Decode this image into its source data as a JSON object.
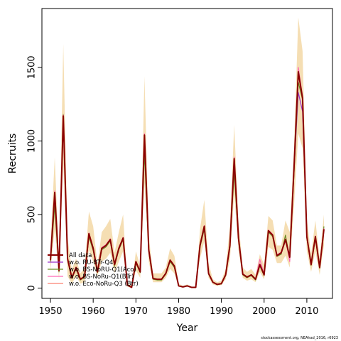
{
  "chart_data": {
    "type": "line",
    "xlabel": "Year",
    "ylabel": "Recruits",
    "xlim": [
      1948,
      2016
    ],
    "ylim": [
      -70,
      1900
    ],
    "x_ticks": [
      1950,
      1960,
      1970,
      1980,
      1990,
      2000,
      2010
    ],
    "y_ticks": [
      0,
      500,
      1000,
      1500
    ],
    "grid": false,
    "legend_position": "bottom-left",
    "footnote": "stockassessment.org, NEAhad_2016, r6923",
    "band": {
      "color": "#f5deb3",
      "x": [
        1950,
        1951,
        1952,
        1953,
        1954,
        1955,
        1956,
        1957,
        1958,
        1959,
        1960,
        1961,
        1962,
        1963,
        1964,
        1965,
        1966,
        1967,
        1968,
        1969,
        1970,
        1971,
        1972,
        1973,
        1974,
        1975,
        1976,
        1977,
        1978,
        1979,
        1980,
        1981,
        1982,
        1983,
        1984,
        1985,
        1986,
        1987,
        1988,
        1989,
        1990,
        1991,
        1992,
        1993,
        1994,
        1995,
        1996,
        1997,
        1998,
        1999,
        2000,
        2001,
        2002,
        2003,
        2004,
        2005,
        2006,
        2007,
        2008,
        2009,
        2010,
        2011,
        2012,
        2013,
        2014
      ],
      "lower": [
        120,
        400,
        60,
        850,
        80,
        30,
        80,
        30,
        40,
        260,
        180,
        80,
        180,
        200,
        240,
        100,
        180,
        250,
        10,
        0,
        120,
        70,
        720,
        180,
        40,
        40,
        40,
        70,
        130,
        100,
        10,
        5,
        10,
        2,
        2,
        200,
        320,
        70,
        25,
        15,
        20,
        60,
        190,
        640,
        260,
        70,
        50,
        60,
        40,
        110,
        60,
        280,
        260,
        170,
        170,
        220,
        140,
        560,
        1050,
        950,
        250,
        110,
        250,
        90,
        290
      ],
      "upper": [
        290,
        890,
        190,
        1660,
        340,
        130,
        200,
        100,
        140,
        520,
        420,
        160,
        380,
        420,
        470,
        240,
        380,
        500,
        30,
        20,
        250,
        150,
        1440,
        360,
        100,
        100,
        100,
        140,
        270,
        220,
        30,
        15,
        25,
        10,
        8,
        400,
        600,
        170,
        60,
        40,
        50,
        130,
        420,
        1110,
        450,
        140,
        110,
        130,
        90,
        230,
        160,
        490,
        460,
        290,
        290,
        460,
        380,
        960,
        1840,
        1610,
        470,
        230,
        460,
        200,
        500
      ]
    },
    "series": [
      {
        "name": "All data",
        "color": "#8b0000",
        "x": [
          1950,
          1951,
          1952,
          1953,
          1954,
          1955,
          1956,
          1957,
          1958,
          1959,
          1960,
          1961,
          1962,
          1963,
          1964,
          1965,
          1966,
          1967,
          1968,
          1969,
          1970,
          1971,
          1972,
          1973,
          1974,
          1975,
          1976,
          1977,
          1978,
          1979,
          1980,
          1981,
          1982,
          1983,
          1984,
          1985,
          1986,
          1987,
          1988,
          1989,
          1990,
          1991,
          1992,
          1993,
          1994,
          1995,
          1996,
          1997,
          1998,
          1999,
          2000,
          2001,
          2002,
          2003,
          2004,
          2005,
          2006,
          2007,
          2008,
          2009,
          2010,
          2011,
          2012,
          2013,
          2014
        ],
        "values": [
          190,
          650,
          120,
          1170,
          200,
          70,
          140,
          60,
          80,
          370,
          270,
          110,
          270,
          290,
          330,
          160,
          270,
          340,
          20,
          5,
          180,
          110,
          1040,
          260,
          65,
          60,
          60,
          100,
          190,
          150,
          15,
          8,
          15,
          5,
          5,
          290,
          420,
          100,
          40,
          25,
          30,
          90,
          290,
          880,
          340,
          95,
          75,
          90,
          60,
          160,
          90,
          390,
          360,
          220,
          240,
          330,
          210,
          820,
          1470,
          1290,
          350,
          160,
          350,
          140,
          400
        ]
      },
      {
        "name": "w.o. RU-BTr-Q4",
        "color": "#9932cc",
        "x": [
          1950,
          1951,
          1952,
          1953,
          1954,
          1955,
          1956,
          1957,
          1958,
          1959,
          1960,
          1961,
          1962,
          1963,
          1964,
          1965,
          1966,
          1967,
          1968,
          1969,
          1970,
          1971,
          1972,
          1973,
          1974,
          1975,
          1976,
          1977,
          1978,
          1979,
          1980,
          1981,
          1982,
          1983,
          1984,
          1985,
          1986,
          1987,
          1988,
          1989,
          1990,
          1991,
          1992,
          1993,
          1994,
          1995,
          1996,
          1997,
          1998,
          1999,
          2000,
          2001,
          2002,
          2003,
          2004,
          2005,
          2006,
          2007,
          2008,
          2009,
          2010,
          2011,
          2012,
          2013,
          2014
        ],
        "values": [
          185,
          640,
          118,
          1160,
          195,
          68,
          138,
          58,
          78,
          365,
          265,
          108,
          265,
          285,
          325,
          158,
          265,
          335,
          19,
          5,
          178,
          108,
          1030,
          258,
          63,
          58,
          58,
          98,
          188,
          148,
          15,
          8,
          14,
          5,
          5,
          285,
          415,
          98,
          39,
          24,
          29,
          88,
          285,
          870,
          335,
          93,
          73,
          88,
          58,
          158,
          88,
          385,
          355,
          218,
          235,
          325,
          208,
          800,
          1330,
          1200,
          345,
          158,
          345,
          138,
          395
        ]
      },
      {
        "name": "w.o. BS-NoRU-Q1(Aco)",
        "color": "#6b8e23",
        "x": [
          1950,
          1951,
          1952,
          1953,
          1954,
          1955,
          1956,
          1957,
          1958,
          1959,
          1960,
          1961,
          1962,
          1963,
          1964,
          1965,
          1966,
          1967,
          1968,
          1969,
          1970,
          1971,
          1972,
          1973,
          1974,
          1975,
          1976,
          1977,
          1978,
          1979,
          1980,
          1981,
          1982,
          1983,
          1984,
          1985,
          1986,
          1987,
          1988,
          1989,
          1990,
          1991,
          1992,
          1993,
          1994,
          1995,
          1996,
          1997,
          1998,
          1999,
          2000,
          2001,
          2002,
          2003,
          2004,
          2005,
          2006,
          2007,
          2008,
          2009,
          2010,
          2011,
          2012,
          2013,
          2014
        ],
        "values": [
          180,
          560,
          110,
          1180,
          190,
          65,
          130,
          55,
          75,
          350,
          255,
          105,
          260,
          280,
          320,
          150,
          260,
          330,
          18,
          5,
          170,
          105,
          920,
          250,
          60,
          55,
          55,
          95,
          180,
          140,
          14,
          7,
          14,
          5,
          5,
          280,
          400,
          95,
          38,
          23,
          28,
          85,
          280,
          790,
          330,
          90,
          70,
          85,
          55,
          150,
          85,
          380,
          350,
          215,
          230,
          360,
          200,
          780,
          1400,
          1280,
          340,
          155,
          340,
          135,
          420
        ]
      },
      {
        "name": "w.o. BS-NoRu-Q1(BTr)",
        "color": "#ff69b4",
        "x": [
          1950,
          1951,
          1952,
          1953,
          1954,
          1955,
          1956,
          1957,
          1958,
          1959,
          1960,
          1961,
          1962,
          1963,
          1964,
          1965,
          1966,
          1967,
          1968,
          1969,
          1970,
          1971,
          1972,
          1973,
          1974,
          1975,
          1976,
          1977,
          1978,
          1979,
          1980,
          1981,
          1982,
          1983,
          1984,
          1985,
          1986,
          1987,
          1988,
          1989,
          1990,
          1991,
          1992,
          1993,
          1994,
          1995,
          1996,
          1997,
          1998,
          1999,
          2000,
          2001,
          2002,
          2003,
          2004,
          2005,
          2006,
          2007,
          2008,
          2009,
          2010,
          2011,
          2012,
          2013,
          2014
        ],
        "values": [
          195,
          660,
          122,
          1175,
          205,
          72,
          142,
          62,
          82,
          375,
          275,
          112,
          275,
          295,
          335,
          162,
          275,
          345,
          21,
          6,
          182,
          112,
          1050,
          265,
          66,
          61,
          61,
          102,
          192,
          152,
          16,
          8,
          16,
          5,
          5,
          295,
          425,
          102,
          41,
          26,
          31,
          92,
          295,
          890,
          345,
          97,
          77,
          92,
          62,
          195,
          92,
          395,
          365,
          225,
          245,
          335,
          180,
          830,
          1500,
          1300,
          355,
          162,
          355,
          142,
          405
        ]
      },
      {
        "name": "w.o. Eco-NoRu-Q3 (Btr)",
        "color": "#fa8072",
        "x": [
          1950,
          1951,
          1952,
          1953,
          1954,
          1955,
          1956,
          1957,
          1958,
          1959,
          1960,
          1961,
          1962,
          1963,
          1964,
          1965,
          1966,
          1967,
          1968,
          1969,
          1970,
          1971,
          1972,
          1973,
          1974,
          1975,
          1976,
          1977,
          1978,
          1979,
          1980,
          1981,
          1982,
          1983,
          1984,
          1985,
          1986,
          1987,
          1988,
          1989,
          1990,
          1991,
          1992,
          1993,
          1994,
          1995,
          1996,
          1997,
          1998,
          1999,
          2000,
          2001,
          2002,
          2003,
          2004,
          2005,
          2006,
          2007,
          2008,
          2009,
          2010,
          2011,
          2012,
          2013,
          2014
        ],
        "values": [
          190,
          645,
          120,
          1165,
          198,
          70,
          140,
          60,
          80,
          368,
          268,
          110,
          268,
          288,
          328,
          160,
          268,
          338,
          20,
          5,
          180,
          110,
          1035,
          260,
          64,
          60,
          60,
          100,
          190,
          150,
          15,
          8,
          15,
          5,
          5,
          288,
          418,
          100,
          40,
          25,
          30,
          90,
          288,
          875,
          338,
          95,
          75,
          90,
          60,
          160,
          90,
          388,
          358,
          220,
          238,
          328,
          210,
          815,
          1460,
          1285,
          348,
          160,
          348,
          140,
          398
        ]
      }
    ]
  }
}
